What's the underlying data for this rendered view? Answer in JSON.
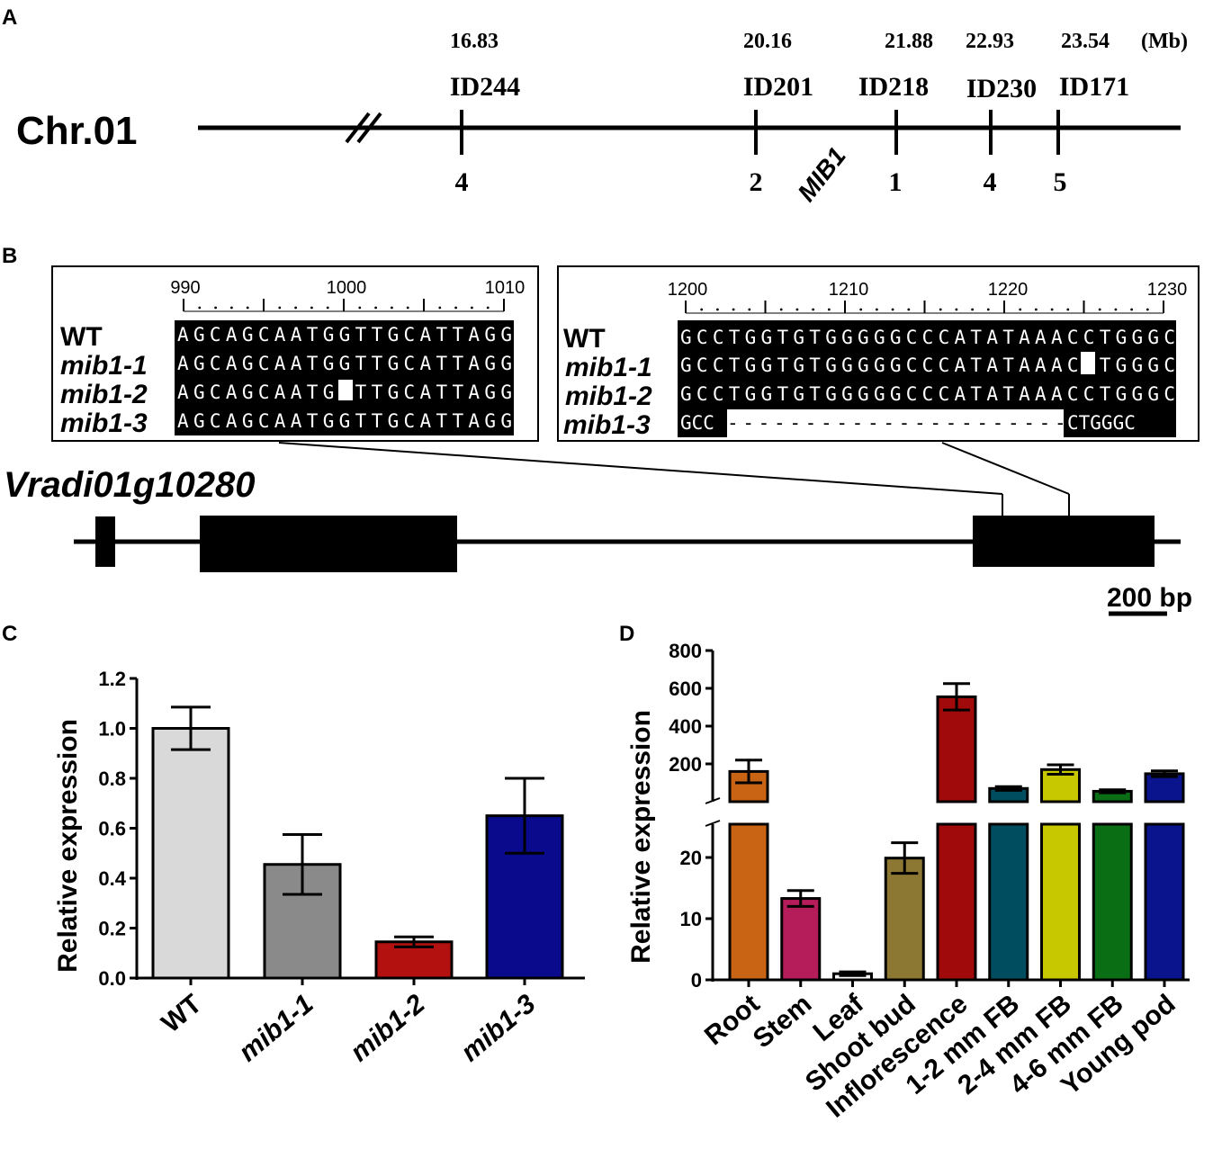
{
  "panel_labels": {
    "a": "A",
    "b": "B",
    "c": "C",
    "d": "D"
  },
  "map": {
    "chromosome": "Chr.01",
    "unit": "(Mb)",
    "gene_locus": "MIB1",
    "markers": [
      {
        "id": "ID244",
        "position": "16.83",
        "recombinants": "4"
      },
      {
        "id": "ID201",
        "position": "20.16",
        "recombinants": "2"
      },
      {
        "id": "ID218",
        "position": "21.88",
        "recombinants": "1"
      },
      {
        "id": "ID230",
        "position": "22.93",
        "recombinants": "4"
      },
      {
        "id": "ID171",
        "position": "23.54",
        "recombinants": "5"
      }
    ]
  },
  "alignments": {
    "left": {
      "ticks": [
        "990",
        "1000",
        "1010"
      ],
      "rows": [
        {
          "label": "WT",
          "seq": "AGCAGCAATGGTTGCATTAGG"
        },
        {
          "label": "mib1-1",
          "seq": "AGCAGCAATGGTTGCATTAGG"
        },
        {
          "label": "mib1-2",
          "seq": "AGCAGCAATG-TTGCATTAGG"
        },
        {
          "label": "mib1-3",
          "seq": "AGCAGCAATGGTTGCATTAGG"
        }
      ]
    },
    "right": {
      "ticks": [
        "1200",
        "1210",
        "1220",
        "1230"
      ],
      "rows": [
        {
          "label": "WT",
          "seq": "GCCTGGTGTGGGGGCCCATATAAACCTGGGC"
        },
        {
          "label": "mib1-1",
          "seq": "GCCTGGTGTGGGGGCCCATATAAAC-TGGGC"
        },
        {
          "label": "mib1-2",
          "seq": "GCCTGGTGTGGGGGCCCATATAAACCTGGGC"
        },
        {
          "label": "mib1-3",
          "seq": "GCC-----------------------CTGGGC"
        }
      ]
    }
  },
  "gene": {
    "name": "Vradi01g10280",
    "scale_label": "200 bp"
  },
  "chart_data": [
    {
      "type": "bar",
      "panel": "C",
      "categories": [
        "WT",
        "mib1-1",
        "mib1-2",
        "mib1-3"
      ],
      "values": [
        1.0,
        0.455,
        0.145,
        0.65
      ],
      "errors": [
        0.085,
        0.12,
        0.02,
        0.15
      ],
      "colors": [
        "#d9d9d9",
        "#8a8a8a",
        "#b31010",
        "#0a0a8c"
      ],
      "ylabel": "Relative expression",
      "ylim": [
        0,
        1.2
      ],
      "yticks": [
        "0.0",
        "0.2",
        "0.4",
        "0.6",
        "0.8",
        "1.0",
        "1.2"
      ]
    },
    {
      "type": "bar",
      "panel": "D",
      "axis_break": true,
      "categories": [
        "Root",
        "Stem",
        "Leaf",
        "Shoot bud",
        "Inflorescence",
        "1-2 mm FB",
        "2-4 mm FB",
        "4-6 mm FB",
        "Young pod"
      ],
      "values": [
        160,
        13.3,
        1.0,
        19.9,
        555,
        70,
        170,
        55,
        148
      ],
      "errors": [
        60,
        1.3,
        0.3,
        2.5,
        70,
        10,
        25,
        8,
        15
      ],
      "colors": [
        "#c86414",
        "#b41c5a",
        "#ffffff",
        "#8c7832",
        "#a00a0a",
        "#004d5f",
        "#c8c800",
        "#0a6e14",
        "#0a148c"
      ],
      "ylabel": "Relative expression",
      "lower_range": [
        0,
        25
      ],
      "upper_range": [
        0,
        800
      ],
      "lower_ticks": [
        "0",
        "10",
        "20"
      ],
      "upper_ticks": [
        "200",
        "400",
        "600",
        "800"
      ]
    }
  ]
}
